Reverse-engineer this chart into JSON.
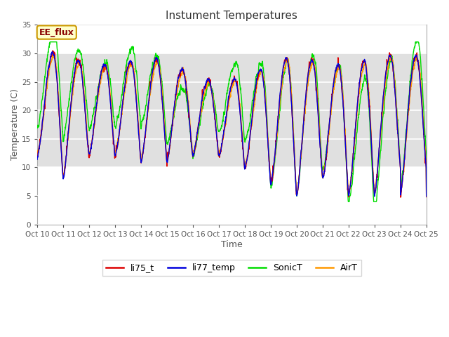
{
  "title": "Instument Temperatures",
  "xlabel": "Time",
  "ylabel": "Temperature (C)",
  "ylim": [
    0,
    35
  ],
  "yticks": [
    0,
    5,
    10,
    15,
    20,
    25,
    30,
    35
  ],
  "x_tick_labels": [
    "Oct 10",
    "Oct 11",
    "Oct 12",
    "Oct 13",
    "Oct 14",
    "Oct 15",
    "Oct 16",
    "Oct 17",
    "Oct 18",
    "Oct 19",
    "Oct 20",
    "Oct 21",
    "Oct 22",
    "Oct 23",
    "Oct 24",
    "Oct 25"
  ],
  "colors": {
    "li75_t": "#dd0000",
    "li77_temp": "#0000dd",
    "SonicT": "#00dd00",
    "AirT": "#ff9900"
  },
  "legend_box_color": "#ffffcc",
  "legend_box_edge": "#cc9900",
  "annotation_text": "EE_flux",
  "annotation_color": "#880000",
  "line_width": 1.0,
  "day_temps": [
    30,
    30,
    28,
    28,
    29,
    29,
    26,
    25,
    26,
    28,
    30,
    28,
    28,
    29,
    30
  ],
  "night_temps": [
    12,
    8,
    12,
    12,
    11,
    11,
    12,
    12,
    10,
    7,
    5,
    8,
    5,
    5,
    10
  ]
}
